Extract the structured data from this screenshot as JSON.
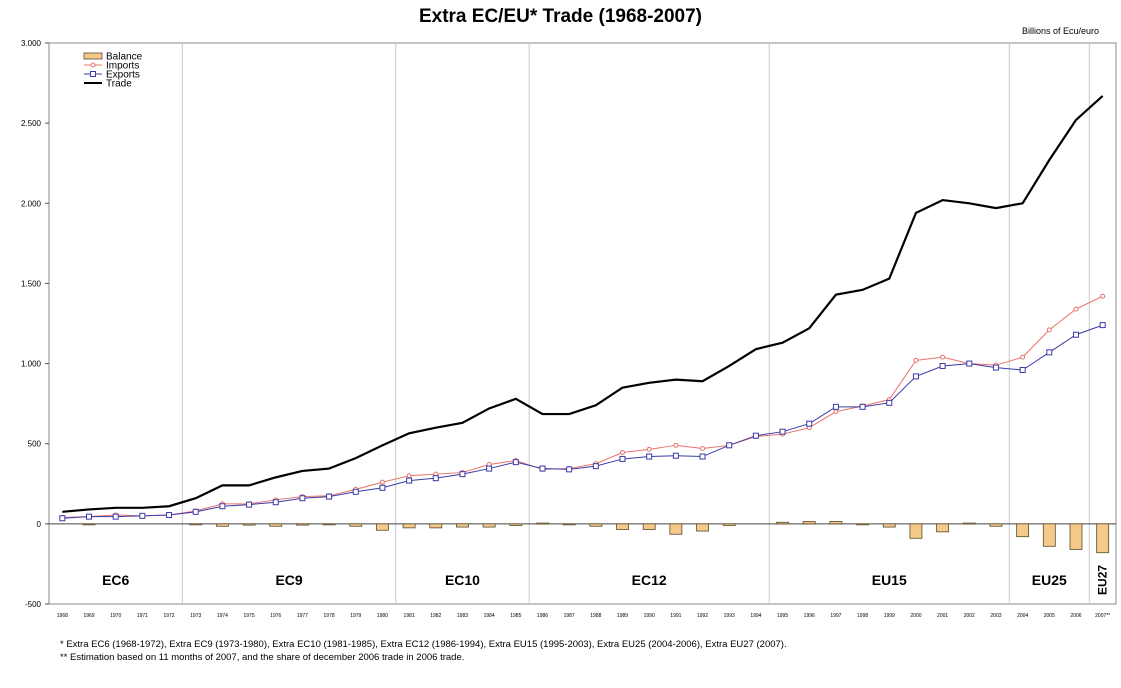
{
  "chart_data": {
    "type": "line",
    "title": "Extra EC/EU* Trade (1968-2007)",
    "unit_label": "Billions of Ecu/euro",
    "ylim": [
      -500,
      3000
    ],
    "y_ticks": [
      -500,
      0,
      500,
      1000,
      1500,
      2000,
      2500,
      3000
    ],
    "y_tick_labels": [
      "-500",
      "0",
      "500",
      "1.000",
      "1.500",
      "2.000",
      "2.500",
      "3.000"
    ],
    "grid": "vertical lines at community enlargements",
    "legend_position": "top-left",
    "categories": [
      "1968",
      "1969",
      "1970",
      "1971",
      "1972",
      "1973",
      "1974",
      "1975",
      "1976",
      "1977",
      "1978",
      "1979",
      "1980",
      "1981",
      "1982",
      "1983",
      "1984",
      "1985",
      "1986",
      "1987",
      "1988",
      "1989",
      "1990",
      "1991",
      "1992",
      "1993",
      "1994",
      "1995",
      "1996",
      "1997",
      "1998",
      "1999",
      "2000",
      "2001",
      "2002",
      "2003",
      "2004",
      "2005",
      "2006",
      "2007**"
    ],
    "series": [
      {
        "name": "Balance",
        "kind": "bar",
        "color": "#f5c98a",
        "values": [
          0,
          -2,
          0,
          0,
          0,
          -5,
          -15,
          -8,
          -15,
          -8,
          -5,
          -15,
          -40,
          -25,
          -25,
          -20,
          -20,
          -10,
          5,
          -5,
          -15,
          -35,
          -35,
          -65,
          -45,
          -10,
          0,
          10,
          15,
          15,
          -5,
          -20,
          -90,
          -50,
          5,
          -15,
          -80,
          -140,
          -160,
          -180
        ]
      },
      {
        "name": "Imports",
        "kind": "line",
        "color": "#e8736b",
        "values": [
          40,
          45,
          55,
          50,
          55,
          80,
          125,
          125,
          150,
          170,
          175,
          215,
          260,
          300,
          310,
          320,
          370,
          395,
          340,
          345,
          375,
          445,
          465,
          490,
          470,
          490,
          545,
          560,
          600,
          700,
          735,
          775,
          1020,
          1040,
          1000,
          990,
          1040,
          1210,
          1340,
          1420
        ]
      },
      {
        "name": "Exports",
        "kind": "line",
        "color": "#3a3aa8",
        "values": [
          35,
          45,
          45,
          50,
          55,
          75,
          110,
          120,
          135,
          160,
          170,
          200,
          225,
          270,
          285,
          310,
          345,
          385,
          345,
          340,
          360,
          405,
          420,
          425,
          420,
          490,
          550,
          575,
          625,
          730,
          730,
          755,
          920,
          985,
          1000,
          975,
          960,
          1070,
          1180,
          1240
        ]
      },
      {
        "name": "Trade",
        "kind": "line",
        "color": "#000000",
        "values": [
          75,
          90,
          100,
          100,
          110,
          160,
          240,
          240,
          290,
          330,
          345,
          410,
          490,
          565,
          600,
          630,
          720,
          780,
          685,
          685,
          740,
          850,
          880,
          900,
          890,
          985,
          1090,
          1130,
          1220,
          1430,
          1460,
          1530,
          1940,
          2020,
          2000,
          1970,
          2000,
          2270,
          2520,
          2670
        ]
      }
    ],
    "period_labels": [
      {
        "label": "EC6",
        "from": "1968",
        "to": "1972"
      },
      {
        "label": "EC9",
        "from": "1973",
        "to": "1980"
      },
      {
        "label": "EC10",
        "from": "1981",
        "to": "1985"
      },
      {
        "label": "EC12",
        "from": "1986",
        "to": "1994"
      },
      {
        "label": "EU15",
        "from": "1995",
        "to": "2003"
      },
      {
        "label": "EU25",
        "from": "2004",
        "to": "2006"
      },
      {
        "label": "EU27",
        "from": "2007**",
        "to": "2007**"
      }
    ]
  },
  "footnotes": [
    "* Extra EC6 (1968-1972), Extra EC9 (1973-1980), Extra EC10 (1981-1985), Extra EC12 (1986-1994), Extra EU15 (1995-2003), Extra EU25 (2004-2006), Extra EU27 (2007).",
    "** Estimation  based on 11 months of 2007, and the share of december 2006 trade in 2006 trade."
  ]
}
